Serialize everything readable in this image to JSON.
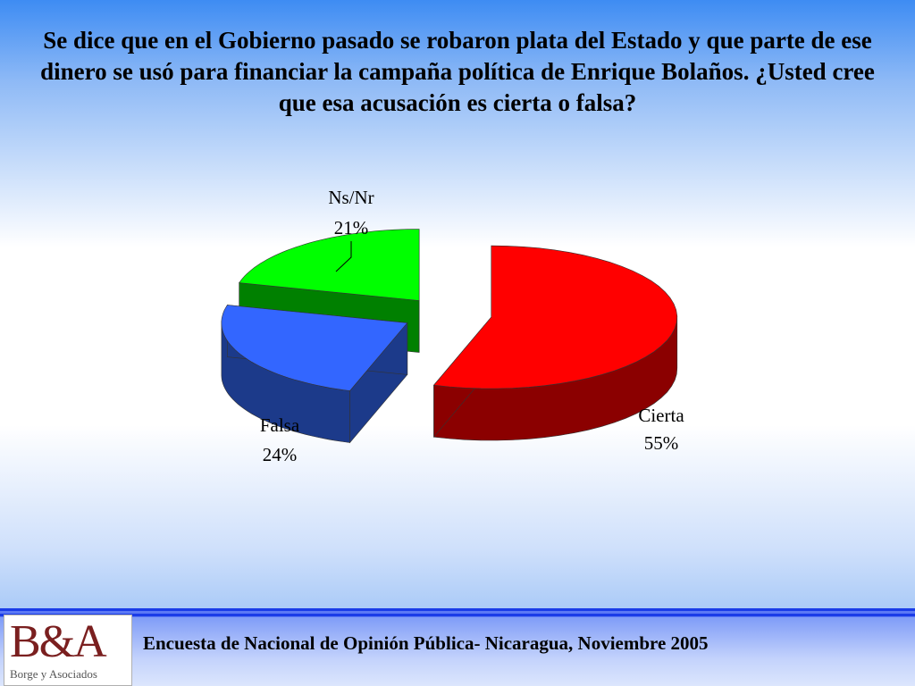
{
  "title": "Se dice que en el Gobierno pasado se robaron plata del Estado y que parte de ese dinero se usó para financiar la campaña política de Enrique Bolaños. ¿Usted cree que esa acusación es cierta o falsa?",
  "chart_data": {
    "type": "pie",
    "categories": [
      "Cierta",
      "Falsa",
      "Ns/Nr"
    ],
    "values": [
      55,
      24,
      21
    ],
    "labels": [
      "55%",
      "24%",
      "21%"
    ],
    "colors": [
      "#ff0000",
      "#3366ff",
      "#00ff00"
    ],
    "side_colors": [
      "#8b0000",
      "#1c3a8a",
      "#008000"
    ]
  },
  "footer": {
    "logo_text": "B&A",
    "logo_subtext": "Borge y Asociados",
    "caption": "Encuesta de Nacional de Opinión Pública- Nicaragua, Noviembre 2005"
  }
}
